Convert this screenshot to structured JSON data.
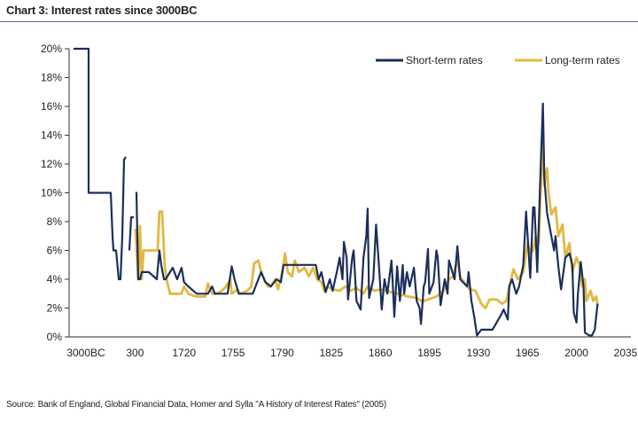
{
  "chart_data": {
    "type": "line",
    "title": "Chart 3: Interest rates since 3000BC",
    "source": "Source: Bank of England, Global Financial Data, Homer and Sylla \"A History of Interest Rates\" (2005)",
    "xlabel": "",
    "ylabel": "",
    "x_ticks": [
      -3000,
      300,
      1720,
      1755,
      1790,
      1825,
      1860,
      1895,
      1930,
      1965,
      2000,
      2035
    ],
    "x_tick_labels": [
      "3000BC",
      "300",
      "1720",
      "1755",
      "1790",
      "1825",
      "1860",
      "1895",
      "1930",
      "1965",
      "2000",
      "2035"
    ],
    "x_axis_note": "tick labels equally spaced (non-linear time axis)",
    "xlim": [
      -4130,
      2039
    ],
    "ylim": [
      0,
      20
    ],
    "y_ticks": [
      0,
      2,
      4,
      6,
      8,
      10,
      12,
      14,
      16,
      18,
      20
    ],
    "y_tick_labels": [
      "0%",
      "2%",
      "4%",
      "6%",
      "8%",
      "10%",
      "12%",
      "14%",
      "16%",
      "18%",
      "20%"
    ],
    "grid": false,
    "legend_position": "top-right",
    "series": [
      {
        "name": "Short-term rates",
        "color": "#1b2f5b",
        "points": [
          [
            -3834,
            20
          ],
          [
            -2821,
            20
          ],
          [
            -2821,
            10
          ],
          [
            -1331,
            10
          ],
          [
            -1212,
            7
          ],
          [
            -1152,
            6
          ],
          [
            -974,
            6
          ],
          [
            -795,
            4
          ],
          [
            -676,
            4
          ],
          [
            -556,
            7
          ],
          [
            -437,
            12.3
          ],
          [
            -318,
            12.5
          ],
          null,
          [
            -80,
            6
          ],
          [
            40,
            8.3
          ],
          [
            218,
            8.3
          ],
          null,
          [
            315,
            10
          ],
          [
            341,
            10
          ],
          [
            392,
            4
          ],
          [
            444,
            4
          ],
          [
            495,
            4.5
          ],
          [
            546,
            4.5
          ],
          [
            700,
            4.5
          ],
          [
            931,
            4.0
          ],
          [
            1007,
            6.0
          ],
          [
            1059,
            5.0
          ],
          [
            1136,
            4.0
          ],
          [
            1187,
            4.0
          ],
          [
            1392,
            4.8
          ],
          [
            1520,
            4.0
          ],
          [
            1648,
            4.8
          ],
          [
            1720,
            3.8
          ],
          [
            1723,
            3.5
          ],
          [
            1729,
            3.0
          ],
          [
            1737,
            3.0
          ],
          [
            1740,
            3.5
          ],
          [
            1742,
            3.0
          ],
          [
            1751,
            3.0
          ],
          [
            1754,
            4.9
          ],
          [
            1756,
            4.0
          ],
          [
            1759,
            3.0
          ],
          [
            1769,
            3.0
          ],
          [
            1771,
            3.5
          ],
          [
            1775,
            4.5
          ],
          [
            1778,
            3.8
          ],
          [
            1782,
            3.5
          ],
          [
            1786,
            4.0
          ],
          [
            1789,
            3.8
          ],
          [
            1791,
            5.0
          ],
          [
            1814,
            5.0
          ],
          [
            1816,
            4.0
          ],
          [
            1818,
            4.5
          ],
          [
            1821,
            3.1
          ],
          [
            1824,
            4.0
          ],
          [
            1826,
            3.2
          ],
          [
            1829,
            4.5
          ],
          [
            1831,
            5.5
          ],
          [
            1833,
            4.0
          ],
          [
            1834,
            6.6
          ],
          [
            1836,
            5.5
          ],
          [
            1837,
            2.6
          ],
          [
            1840,
            5.5
          ],
          [
            1841,
            6.0
          ],
          [
            1843,
            2.5
          ],
          [
            1846,
            1.9
          ],
          [
            1848,
            5.5
          ],
          [
            1850,
            7.0
          ],
          [
            1851,
            8.9
          ],
          [
            1852,
            2.7
          ],
          [
            1855,
            4.0
          ],
          [
            1857,
            7.8
          ],
          [
            1859,
            5.0
          ],
          [
            1861,
            1.9
          ],
          [
            1863,
            4.0
          ],
          [
            1865,
            3.0
          ],
          [
            1868,
            5.3
          ],
          [
            1869,
            3.5
          ],
          [
            1870,
            1.4
          ],
          [
            1872,
            4.9
          ],
          [
            1874,
            2.5
          ],
          [
            1876,
            5.0
          ],
          [
            1877,
            3.0
          ],
          [
            1879,
            4.5
          ],
          [
            1881,
            3.5
          ],
          [
            1884,
            4.8
          ],
          [
            1886,
            2.5
          ],
          [
            1888,
            2.0
          ],
          [
            1889,
            0.9
          ],
          [
            1891,
            3.5
          ],
          [
            1892,
            3.8
          ],
          [
            1894,
            6.1
          ],
          [
            1895,
            3.0
          ],
          [
            1898,
            3.8
          ],
          [
            1900,
            6.0
          ],
          [
            1901,
            5.5
          ],
          [
            1903,
            2.2
          ],
          [
            1906,
            4.0
          ],
          [
            1908,
            3.0
          ],
          [
            1909,
            5.3
          ],
          [
            1913,
            4.0
          ],
          [
            1915,
            6.3
          ],
          [
            1917,
            4.0
          ],
          [
            1922,
            3.5
          ],
          [
            1923,
            4.5
          ],
          [
            1925,
            2.5
          ],
          [
            1927,
            1.4
          ],
          [
            1929,
            0.1
          ],
          [
            1932,
            0.5
          ],
          [
            1940,
            0.5
          ],
          [
            1943,
            1.0
          ],
          [
            1946,
            1.5
          ],
          [
            1948,
            1.9
          ],
          [
            1951,
            1.2
          ],
          [
            1952,
            3.5
          ],
          [
            1954,
            4.0
          ],
          [
            1957,
            3.0
          ],
          [
            1959,
            3.5
          ],
          [
            1962,
            5.0
          ],
          [
            1964,
            8.7
          ],
          [
            1967,
            4.1
          ],
          [
            1969,
            9.0
          ],
          [
            1970,
            9.0
          ],
          [
            1972,
            4.5
          ],
          [
            1974,
            10.6
          ],
          [
            1976,
            16.2
          ],
          [
            1977,
            11
          ],
          [
            1979,
            8.6
          ],
          [
            1982,
            7.0
          ],
          [
            1984,
            6.0
          ],
          [
            1985,
            7.0
          ],
          [
            1987,
            4.9
          ],
          [
            1989,
            3.3
          ],
          [
            1992,
            5.5
          ],
          [
            1995,
            5.8
          ],
          [
            1997,
            5.0
          ],
          [
            1998,
            1.7
          ],
          [
            2000,
            1.0
          ],
          [
            2001,
            3.0
          ],
          [
            2003,
            5.2
          ],
          [
            2005,
            3.5
          ],
          [
            2006,
            0.3
          ],
          [
            2009,
            0.1
          ],
          [
            2011,
            0.1
          ],
          [
            2013,
            0.5
          ],
          [
            2015,
            2.3
          ]
        ]
      },
      {
        "name": "Long-term rates",
        "color": "#e2b842",
        "points": [
          [
            315,
            7.5
          ],
          [
            392,
            4.0
          ],
          [
            444,
            7.7
          ],
          [
            495,
            4.0
          ],
          [
            546,
            6.0
          ],
          [
            802,
            6.0
          ],
          [
            956,
            6.0
          ],
          [
            1007,
            8.7
          ],
          [
            1084,
            8.7
          ],
          [
            1161,
            5.0
          ],
          [
            1212,
            4.0
          ],
          [
            1315,
            3.0
          ],
          [
            1648,
            3.0
          ],
          [
            1720,
            3.5
          ],
          [
            1723,
            3.0
          ],
          [
            1728,
            2.8
          ],
          [
            1735,
            2.8
          ],
          [
            1737,
            3.7
          ],
          [
            1740,
            3.0
          ],
          [
            1743,
            3.0
          ],
          [
            1747,
            3.2
          ],
          [
            1750,
            3.5
          ],
          [
            1753,
            4.0
          ],
          [
            1754,
            3.0
          ],
          [
            1758,
            3.3
          ],
          [
            1760,
            3.0
          ],
          [
            1765,
            3.2
          ],
          [
            1768,
            3.5
          ],
          [
            1770,
            5.1
          ],
          [
            1773,
            5.3
          ],
          [
            1775,
            4.5
          ],
          [
            1778,
            3.8
          ],
          [
            1780,
            3.5
          ],
          [
            1782,
            3.5
          ],
          [
            1785,
            4.0
          ],
          [
            1787,
            3.3
          ],
          [
            1790,
            4.5
          ],
          [
            1792,
            5.8
          ],
          [
            1794,
            4.5
          ],
          [
            1797,
            4.2
          ],
          [
            1799,
            5.3
          ],
          [
            1802,
            4.5
          ],
          [
            1806,
            4.8
          ],
          [
            1809,
            4.2
          ],
          [
            1812,
            4.8
          ],
          [
            1815,
            4.0
          ],
          [
            1818,
            3.8
          ],
          [
            1820,
            3.2
          ],
          [
            1822,
            3.5
          ],
          [
            1826,
            3.3
          ],
          [
            1831,
            3.2
          ],
          [
            1835,
            3.5
          ],
          [
            1839,
            3.2
          ],
          [
            1843,
            3.4
          ],
          [
            1848,
            3.0
          ],
          [
            1851,
            3.5
          ],
          [
            1856,
            3.2
          ],
          [
            1860,
            3.3
          ],
          [
            1864,
            3.2
          ],
          [
            1872,
            3.0
          ],
          [
            1880,
            2.8
          ],
          [
            1886,
            2.7
          ],
          [
            1890,
            2.45
          ],
          [
            1894,
            2.6
          ],
          [
            1900,
            2.8
          ],
          [
            1905,
            3.2
          ],
          [
            1909,
            4.0
          ],
          [
            1912,
            4.2
          ],
          [
            1915,
            5.4
          ],
          [
            1917,
            4.2
          ],
          [
            1921,
            3.6
          ],
          [
            1924,
            3.3
          ],
          [
            1928,
            3.2
          ],
          [
            1932,
            2.3
          ],
          [
            1935,
            2.0
          ],
          [
            1938,
            2.6
          ],
          [
            1943,
            2.6
          ],
          [
            1947,
            2.3
          ],
          [
            1950,
            2.5
          ],
          [
            1953,
            3.9
          ],
          [
            1955,
            4.7
          ],
          [
            1958,
            4.0
          ],
          [
            1962,
            4.5
          ],
          [
            1965,
            6.5
          ],
          [
            1967,
            5.8
          ],
          [
            1969,
            6.0
          ],
          [
            1971,
            7.0
          ],
          [
            1973,
            6.5
          ],
          [
            1976,
            14.0
          ],
          [
            1977,
            10.5
          ],
          [
            1979,
            11.7
          ],
          [
            1980,
            10.0
          ],
          [
            1982,
            8.5
          ],
          [
            1985,
            9.0
          ],
          [
            1987,
            7.0
          ],
          [
            1990,
            7.8
          ],
          [
            1992,
            5.5
          ],
          [
            1995,
            6.5
          ],
          [
            1997,
            4.5
          ],
          [
            2000,
            5.5
          ],
          [
            2002,
            5.0
          ],
          [
            2004,
            3.5
          ],
          [
            2006,
            4.0
          ],
          [
            2007,
            2.5
          ],
          [
            2010,
            3.2
          ],
          [
            2012,
            2.5
          ],
          [
            2014,
            2.8
          ],
          [
            2015,
            2.2
          ]
        ]
      }
    ]
  }
}
